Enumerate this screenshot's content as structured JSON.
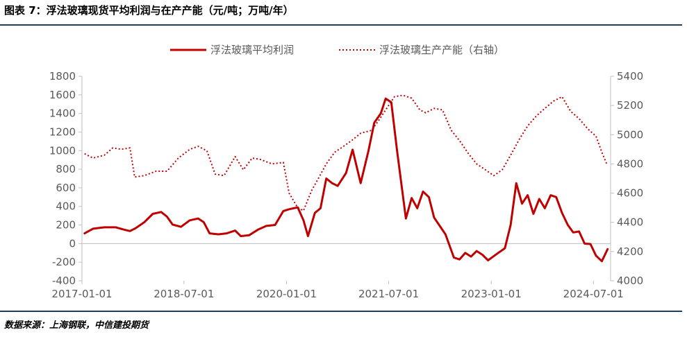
{
  "figure": {
    "title": "图表 7：浮法玻璃现货平均利润与在产产能（元/吨；万吨/年）",
    "source": "数据来源：上海钢联，中信建投期货"
  },
  "colors": {
    "line": "#c00000",
    "axis": "#bfbfbf",
    "text": "#595959",
    "rule": "#1f3b5f"
  },
  "chart_data": {
    "type": "line",
    "x_tick_labels": [
      "2017-01-01",
      "2018-07-01",
      "2020-01-01",
      "2021-07-01",
      "2023-01-01",
      "2024-07-01"
    ],
    "x_ticks": [
      "2017-01-01",
      "2018-07-01",
      "2020-01-01",
      "2021-07-01",
      "2023-01-01",
      "2024-07-01"
    ],
    "xlim": [
      "2017-01-01",
      "2024-10-01"
    ],
    "left_axis": {
      "ylim": [
        -400,
        1800
      ],
      "ticks": [
        -400,
        -200,
        0,
        200,
        400,
        600,
        800,
        1000,
        1200,
        1400,
        1600,
        1800
      ]
    },
    "right_axis": {
      "ylim": [
        4000,
        5400
      ],
      "ticks": [
        4000,
        4200,
        4400,
        4600,
        4800,
        5000,
        5200,
        5400
      ]
    },
    "legend": {
      "position": "top-center"
    },
    "series": [
      {
        "name": "浮法玻璃平均利润",
        "axis": "left",
        "style": "solid",
        "points": [
          [
            "2017-01-15",
            110
          ],
          [
            "2017-03-01",
            160
          ],
          [
            "2017-05-01",
            175
          ],
          [
            "2017-07-01",
            175
          ],
          [
            "2017-08-15",
            150
          ],
          [
            "2017-09-15",
            135
          ],
          [
            "2017-10-15",
            165
          ],
          [
            "2017-12-01",
            230
          ],
          [
            "2018-01-15",
            320
          ],
          [
            "2018-03-01",
            340
          ],
          [
            "2018-04-01",
            290
          ],
          [
            "2018-05-01",
            205
          ],
          [
            "2018-06-15",
            180
          ],
          [
            "2018-08-01",
            250
          ],
          [
            "2018-09-15",
            270
          ],
          [
            "2018-10-15",
            230
          ],
          [
            "2018-11-15",
            110
          ],
          [
            "2019-01-01",
            100
          ],
          [
            "2019-02-15",
            110
          ],
          [
            "2019-04-01",
            140
          ],
          [
            "2019-05-01",
            80
          ],
          [
            "2019-06-15",
            90
          ],
          [
            "2019-08-01",
            150
          ],
          [
            "2019-09-15",
            190
          ],
          [
            "2019-11-01",
            200
          ],
          [
            "2019-12-15",
            350
          ],
          [
            "2020-01-15",
            370
          ],
          [
            "2020-03-01",
            390
          ],
          [
            "2020-04-01",
            250
          ],
          [
            "2020-04-25",
            80
          ],
          [
            "2020-06-01",
            330
          ],
          [
            "2020-07-01",
            380
          ],
          [
            "2020-08-01",
            700
          ],
          [
            "2020-09-01",
            650
          ],
          [
            "2020-10-01",
            620
          ],
          [
            "2020-11-15",
            760
          ],
          [
            "2020-12-20",
            1010
          ],
          [
            "2021-02-01",
            650
          ],
          [
            "2021-03-15",
            1000
          ],
          [
            "2021-04-15",
            1300
          ],
          [
            "2021-05-20",
            1400
          ],
          [
            "2021-06-15",
            1560
          ],
          [
            "2021-07-15",
            1520
          ],
          [
            "2021-08-15",
            1000
          ],
          [
            "2021-10-01",
            270
          ],
          [
            "2021-11-01",
            490
          ],
          [
            "2021-12-01",
            380
          ],
          [
            "2022-01-01",
            560
          ],
          [
            "2022-02-01",
            500
          ],
          [
            "2022-03-01",
            280
          ],
          [
            "2022-05-01",
            100
          ],
          [
            "2022-06-15",
            -150
          ],
          [
            "2022-07-15",
            -170
          ],
          [
            "2022-08-15",
            -100
          ],
          [
            "2022-09-15",
            -140
          ],
          [
            "2022-10-15",
            -80
          ],
          [
            "2022-11-15",
            -120
          ],
          [
            "2022-12-15",
            -180
          ],
          [
            "2023-02-01",
            -110
          ],
          [
            "2023-03-15",
            -50
          ],
          [
            "2023-04-15",
            200
          ],
          [
            "2023-05-15",
            650
          ],
          [
            "2023-06-15",
            430
          ],
          [
            "2023-07-15",
            520
          ],
          [
            "2023-08-15",
            320
          ],
          [
            "2023-09-15",
            480
          ],
          [
            "2023-10-15",
            380
          ],
          [
            "2023-11-15",
            520
          ],
          [
            "2023-12-15",
            500
          ],
          [
            "2024-01-15",
            330
          ],
          [
            "2024-02-15",
            200
          ],
          [
            "2024-03-15",
            120
          ],
          [
            "2024-04-15",
            130
          ],
          [
            "2024-05-15",
            0
          ],
          [
            "2024-06-15",
            -5
          ],
          [
            "2024-07-15",
            -130
          ],
          [
            "2024-08-15",
            -190
          ],
          [
            "2024-09-15",
            -60
          ]
        ]
      },
      {
        "name": "浮法玻璃生产产能（右轴）",
        "axis": "right",
        "style": "dotted",
        "points": [
          [
            "2017-01-15",
            4870
          ],
          [
            "2017-03-01",
            4840
          ],
          [
            "2017-05-01",
            4860
          ],
          [
            "2017-06-15",
            4910
          ],
          [
            "2017-08-01",
            4900
          ],
          [
            "2017-09-15",
            4910
          ],
          [
            "2017-10-10",
            4710
          ],
          [
            "2017-12-01",
            4720
          ],
          [
            "2018-02-01",
            4750
          ],
          [
            "2018-04-01",
            4750
          ],
          [
            "2018-06-01",
            4840
          ],
          [
            "2018-08-01",
            4900
          ],
          [
            "2018-09-15",
            4920
          ],
          [
            "2018-11-01",
            4890
          ],
          [
            "2018-12-15",
            4730
          ],
          [
            "2019-02-01",
            4720
          ],
          [
            "2019-04-01",
            4850
          ],
          [
            "2019-05-15",
            4760
          ],
          [
            "2019-07-01",
            4840
          ],
          [
            "2019-08-15",
            4830
          ],
          [
            "2019-10-15",
            4800
          ],
          [
            "2019-12-15",
            4810
          ],
          [
            "2020-01-15",
            4600
          ],
          [
            "2020-03-01",
            4500
          ],
          [
            "2020-04-01",
            4480
          ],
          [
            "2020-05-15",
            4620
          ],
          [
            "2020-06-15",
            4690
          ],
          [
            "2020-08-01",
            4800
          ],
          [
            "2020-09-15",
            4880
          ],
          [
            "2020-11-01",
            4920
          ],
          [
            "2020-12-15",
            4960
          ],
          [
            "2021-02-01",
            5010
          ],
          [
            "2021-04-01",
            5030
          ],
          [
            "2021-05-15",
            5110
          ],
          [
            "2021-06-15",
            5170
          ],
          [
            "2021-08-01",
            5260
          ],
          [
            "2021-09-15",
            5270
          ],
          [
            "2021-11-01",
            5250
          ],
          [
            "2021-12-15",
            5170
          ],
          [
            "2022-01-15",
            5150
          ],
          [
            "2022-03-01",
            5180
          ],
          [
            "2022-04-15",
            5170
          ],
          [
            "2022-06-01",
            5030
          ],
          [
            "2022-07-15",
            4960
          ],
          [
            "2022-09-01",
            4870
          ],
          [
            "2022-10-15",
            4800
          ],
          [
            "2022-12-01",
            4760
          ],
          [
            "2023-01-15",
            4720
          ],
          [
            "2023-03-01",
            4760
          ],
          [
            "2023-04-15",
            4860
          ],
          [
            "2023-06-01",
            4970
          ],
          [
            "2023-07-15",
            5060
          ],
          [
            "2023-09-01",
            5130
          ],
          [
            "2023-10-15",
            5180
          ],
          [
            "2023-12-01",
            5230
          ],
          [
            "2024-01-15",
            5260
          ],
          [
            "2024-03-01",
            5160
          ],
          [
            "2024-04-15",
            5110
          ],
          [
            "2024-06-01",
            5040
          ],
          [
            "2024-07-15",
            4990
          ],
          [
            "2024-08-15",
            4880
          ],
          [
            "2024-09-10",
            4800
          ]
        ]
      }
    ]
  }
}
